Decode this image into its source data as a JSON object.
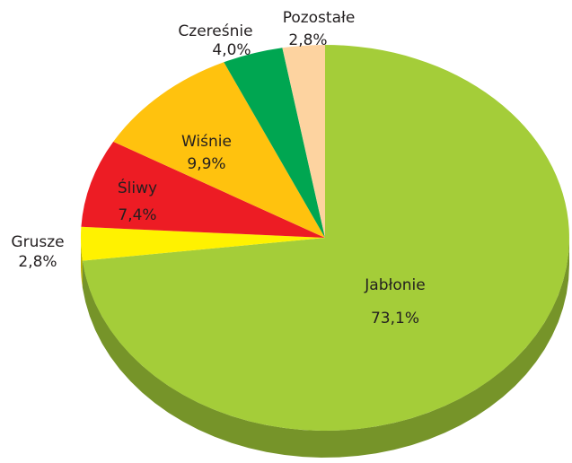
{
  "chart_data": {
    "type": "pie",
    "categories": [
      "Jabłonie",
      "Grusze",
      "Śliwy",
      "Wiśnie",
      "Czereśnie",
      "Pozostałe"
    ],
    "values": [
      73.1,
      2.8,
      7.4,
      9.9,
      4.0,
      2.8
    ],
    "value_labels": [
      "73,1%",
      "2,8%",
      "7,4%",
      "9,9%",
      "4,0%",
      "2,8%"
    ],
    "colors": [
      "#a4cd39",
      "#fff200",
      "#ed1c24",
      "#ffc20e",
      "#00a651",
      "#fdd3a0"
    ]
  }
}
